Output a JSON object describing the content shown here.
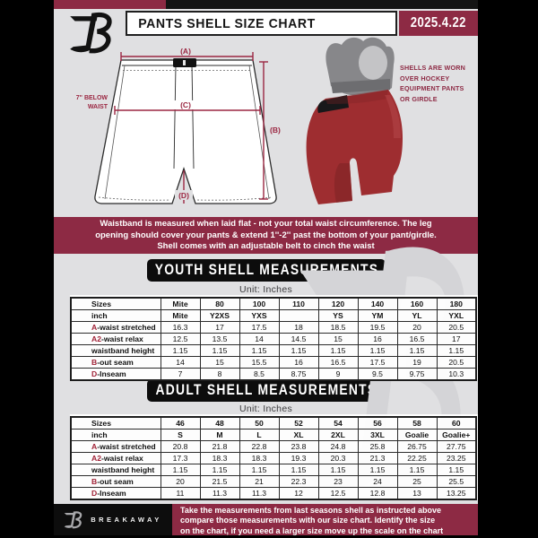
{
  "page": {
    "header": {
      "title": "PANTS SHELL SIZE CHART",
      "date": "2025.4.22"
    },
    "diagram": {
      "label_a": "(A)",
      "label_b": "(B)",
      "label_c": "(C)",
      "label_d": "(D)",
      "below_waist_line1": "7\" BELOW",
      "below_waist_line2": "WAIST"
    },
    "shell_photo_note_lines": [
      "SHELLS ARE WORN",
      "OVER HOCKEY",
      "EQUIPMENT PANTS",
      "OR GIRDLE"
    ],
    "info_banner_lines": [
      "Waistband is measured when laid flat - not your total waist circumference. The leg",
      "opening should cover your pants & extend 1''-2'' past the bottom of your pant/girdle.",
      "Shell comes with an adjustable belt to cinch the waist"
    ],
    "youth": {
      "heading": "YOUTH SHELL MEASUREMENTS",
      "unit": "Unit: Inches",
      "table": {
        "columns": [
          "Sizes",
          "Mite",
          "80",
          "100",
          "110",
          "120",
          "140",
          "160",
          "180"
        ],
        "rows": [
          {
            "prefix": "",
            "label": "inch",
            "bold": true,
            "values": [
              "Mite",
              "Y2XS",
              "YXS",
              "",
              "YS",
              "YM",
              "YL",
              "YXL"
            ]
          },
          {
            "prefix": "A",
            "label": "-waist stretched",
            "values": [
              "16.3",
              "17",
              "17.5",
              "18",
              "18.5",
              "19.5",
              "20",
              "20.5"
            ]
          },
          {
            "prefix": "A2",
            "label": "-waist relax",
            "values": [
              "12.5",
              "13.5",
              "14",
              "14.5",
              "15",
              "16",
              "16.5",
              "17"
            ]
          },
          {
            "prefix": "",
            "label": "waistband height",
            "values": [
              "1.15",
              "1.15",
              "1.15",
              "1.15",
              "1.15",
              "1.15",
              "1.15",
              "1.15"
            ]
          },
          {
            "prefix": "B",
            "label": "-out seam",
            "values": [
              "14",
              "15",
              "15.5",
              "16",
              "16.5",
              "17.5",
              "19",
              "20.5"
            ]
          },
          {
            "prefix": "D",
            "label": "-Inseam",
            "values": [
              "7",
              "8",
              "8.5",
              "8.75",
              "9",
              "9.5",
              "9.75",
              "10.3"
            ]
          }
        ]
      }
    },
    "adult": {
      "heading": "ADULT SHELL MEASUREMENTS",
      "unit": "Unit: Inches",
      "table": {
        "columns": [
          "Sizes",
          "46",
          "48",
          "50",
          "52",
          "54",
          "56",
          "58",
          "60"
        ],
        "rows": [
          {
            "prefix": "",
            "label": "inch",
            "bold": true,
            "values": [
              "S",
              "M",
              "L",
              "XL",
              "2XL",
              "3XL",
              "Goalie",
              "Goalie+"
            ]
          },
          {
            "prefix": "A",
            "label": "-waist stretched",
            "values": [
              "20.8",
              "21.8",
              "22.8",
              "23.8",
              "24.8",
              "25.8",
              "26.75",
              "27.75"
            ]
          },
          {
            "prefix": "A2",
            "label": "-waist relax",
            "values": [
              "17.3",
              "18.3",
              "18.3",
              "19.3",
              "20.3",
              "21.3",
              "22.25",
              "23.25"
            ]
          },
          {
            "prefix": "",
            "label": "waistband height",
            "values": [
              "1.15",
              "1.15",
              "1.15",
              "1.15",
              "1.15",
              "1.15",
              "1.15",
              "1.15"
            ]
          },
          {
            "prefix": "B",
            "label": "-out seam",
            "values": [
              "20",
              "21.5",
              "21",
              "22.3",
              "23",
              "24",
              "25",
              "25.5"
            ]
          },
          {
            "prefix": "D",
            "label": "-Inseam",
            "values": [
              "11",
              "11.3",
              "11.3",
              "12",
              "12.5",
              "12.8",
              "13",
              "13.25"
            ]
          }
        ]
      }
    },
    "footer": {
      "brand": "BREAKAWAY",
      "note_lines": [
        "Take the measurements from last seasons shell as instructed above",
        "compare those measurements  with our size chart. Identify the size",
        "on the chart, if you need a larger size move up the scale on the chart"
      ]
    },
    "colors": {
      "maroon": "#8d2a44",
      "measure_letter_red": "#a02237",
      "shell_red": "#9e2d30",
      "page_gray": "#e0e0e2"
    }
  }
}
